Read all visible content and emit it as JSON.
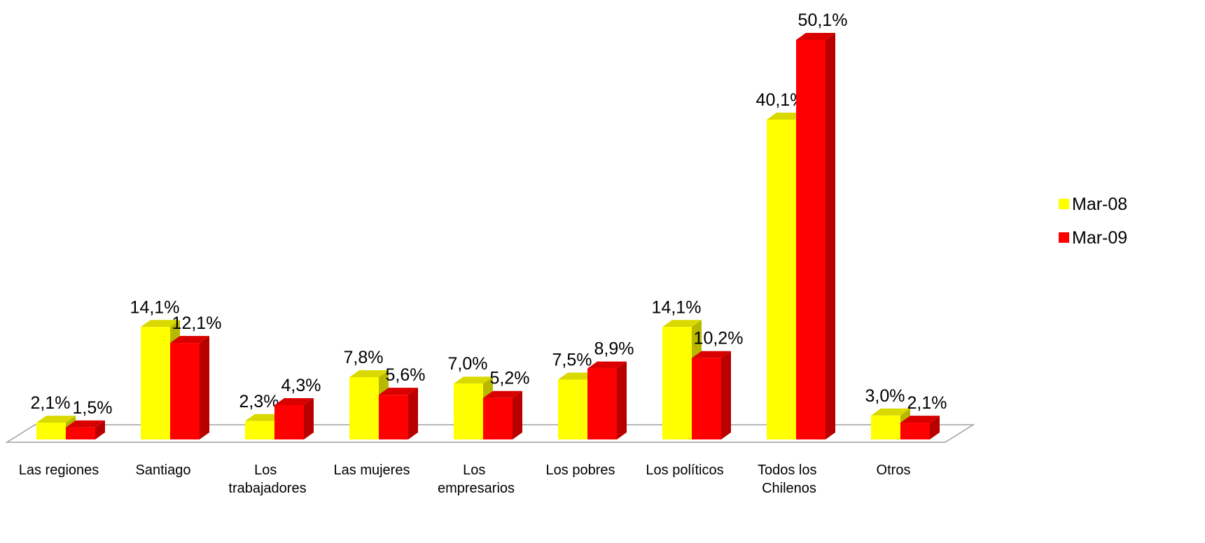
{
  "chart_data": {
    "type": "bar3d",
    "categories": [
      "Las regiones",
      "Santiago",
      "Los trabajadores",
      "Las mujeres",
      "Los empresarios",
      "Los pobres",
      "Los políticos",
      "Todos los Chilenos",
      "Otros"
    ],
    "series": [
      {
        "name": "Mar-08",
        "color": "#ffff00",
        "values": [
          2.1,
          14.1,
          2.3,
          7.8,
          7.0,
          7.5,
          14.1,
          40.1,
          3.0
        ],
        "value_labels": [
          "2,1%",
          "14,1%",
          "2,3%",
          "7,8%",
          "7,0%",
          "7,5%",
          "14,1%",
          "40,1%",
          "3,0%"
        ]
      },
      {
        "name": "Mar-09",
        "color": "#ff0000",
        "values": [
          1.5,
          12.1,
          4.3,
          5.6,
          5.2,
          8.9,
          10.2,
          50.1,
          2.1
        ],
        "value_labels": [
          "1,5%",
          "12,1%",
          "4,3%",
          "5,6%",
          "5,2%",
          "8,9%",
          "10,2%",
          "50,1%",
          "2,1%"
        ]
      }
    ],
    "legend": "right"
  }
}
